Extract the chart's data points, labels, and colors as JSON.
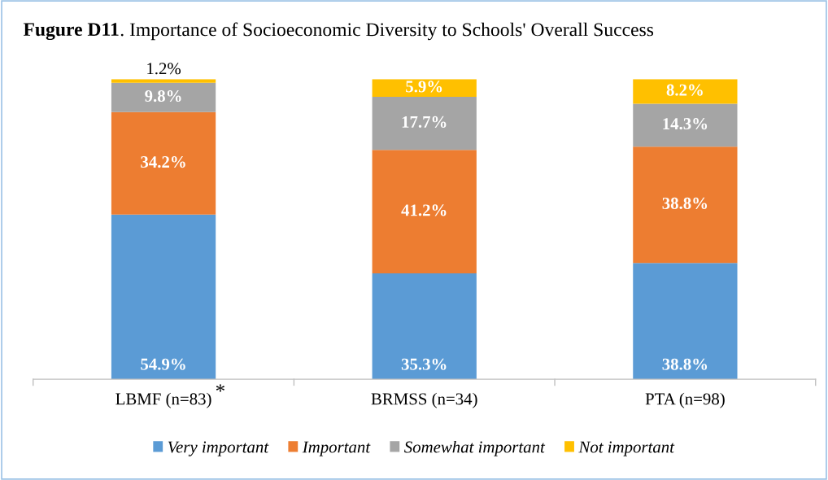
{
  "chart_data": {
    "type": "bar",
    "title": "Fugure D11. Importance of Socioeconomic Diversity to Schools' Overall Success",
    "categories": [
      "LBMF (n=83)",
      "BRMSS (n=34)",
      "PTA (n=98)"
    ],
    "stacked": true,
    "legend": "bottom",
    "grid": false,
    "series": [
      {
        "name": "Very important",
        "color": "#5b9bd5",
        "values": [
          54.9,
          35.3,
          38.8
        ],
        "value_labels": [
          "54.9%",
          "35.3%",
          "38.8%"
        ]
      },
      {
        "name": "Important",
        "color": "#ed7d31",
        "values": [
          34.2,
          41.2,
          38.8
        ],
        "value_labels": [
          "34.2%",
          "41.2%",
          "38.8%"
        ]
      },
      {
        "name": "Somewhat important",
        "color": "#a5a5a5",
        "values": [
          9.8,
          17.7,
          14.3
        ],
        "value_labels": [
          "9.8%",
          "17.7%",
          "14.3%"
        ]
      },
      {
        "name": "Not important",
        "color": "#ffc000",
        "values": [
          1.2,
          5.9,
          8.2
        ],
        "value_labels": [
          "1.2%",
          "5.9%",
          "8.2%"
        ]
      }
    ],
    "annotations": [
      "*"
    ]
  }
}
